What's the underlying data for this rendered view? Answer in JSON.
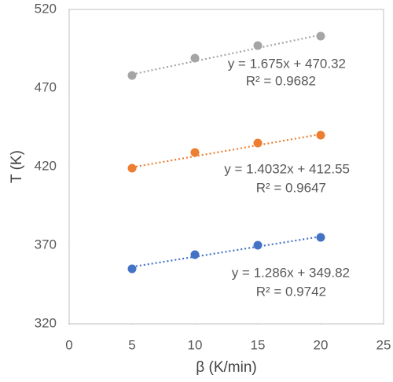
{
  "chart_data": {
    "type": "scatter",
    "x_label": "β (K/min)",
    "y_label": "T (K)",
    "xlim": [
      0,
      25
    ],
    "xticks": [
      0,
      5,
      10,
      15,
      20,
      25
    ],
    "ylim": [
      320,
      520
    ],
    "yticks": [
      320,
      370,
      420,
      470,
      520
    ],
    "x": [
      5,
      10,
      15,
      20
    ],
    "series": [
      {
        "color": "#a5a5a5",
        "values": [
          478,
          489,
          497,
          503
        ],
        "trendline": {
          "equation": "y = 1.675x + 470.32",
          "r2_label": "R² = 0.9682",
          "slope": 1.675,
          "intercept": 470.32,
          "r2": 0.9682
        }
      },
      {
        "color": "#ed7d31",
        "values": [
          419,
          429,
          435,
          440
        ],
        "trendline": {
          "equation": "y = 1.4032x + 412.55",
          "r2_label": "R² = 0.9647",
          "slope": 1.4032,
          "intercept": 412.55,
          "r2": 0.9647
        }
      },
      {
        "color": "#4472c4",
        "values": [
          355,
          364,
          370,
          375
        ],
        "trendline": {
          "equation": "y = 1.286x + 349.82",
          "r2_label": "R² = 0.9742",
          "slope": 1.286,
          "intercept": 349.82,
          "r2": 0.9742
        }
      }
    ]
  }
}
